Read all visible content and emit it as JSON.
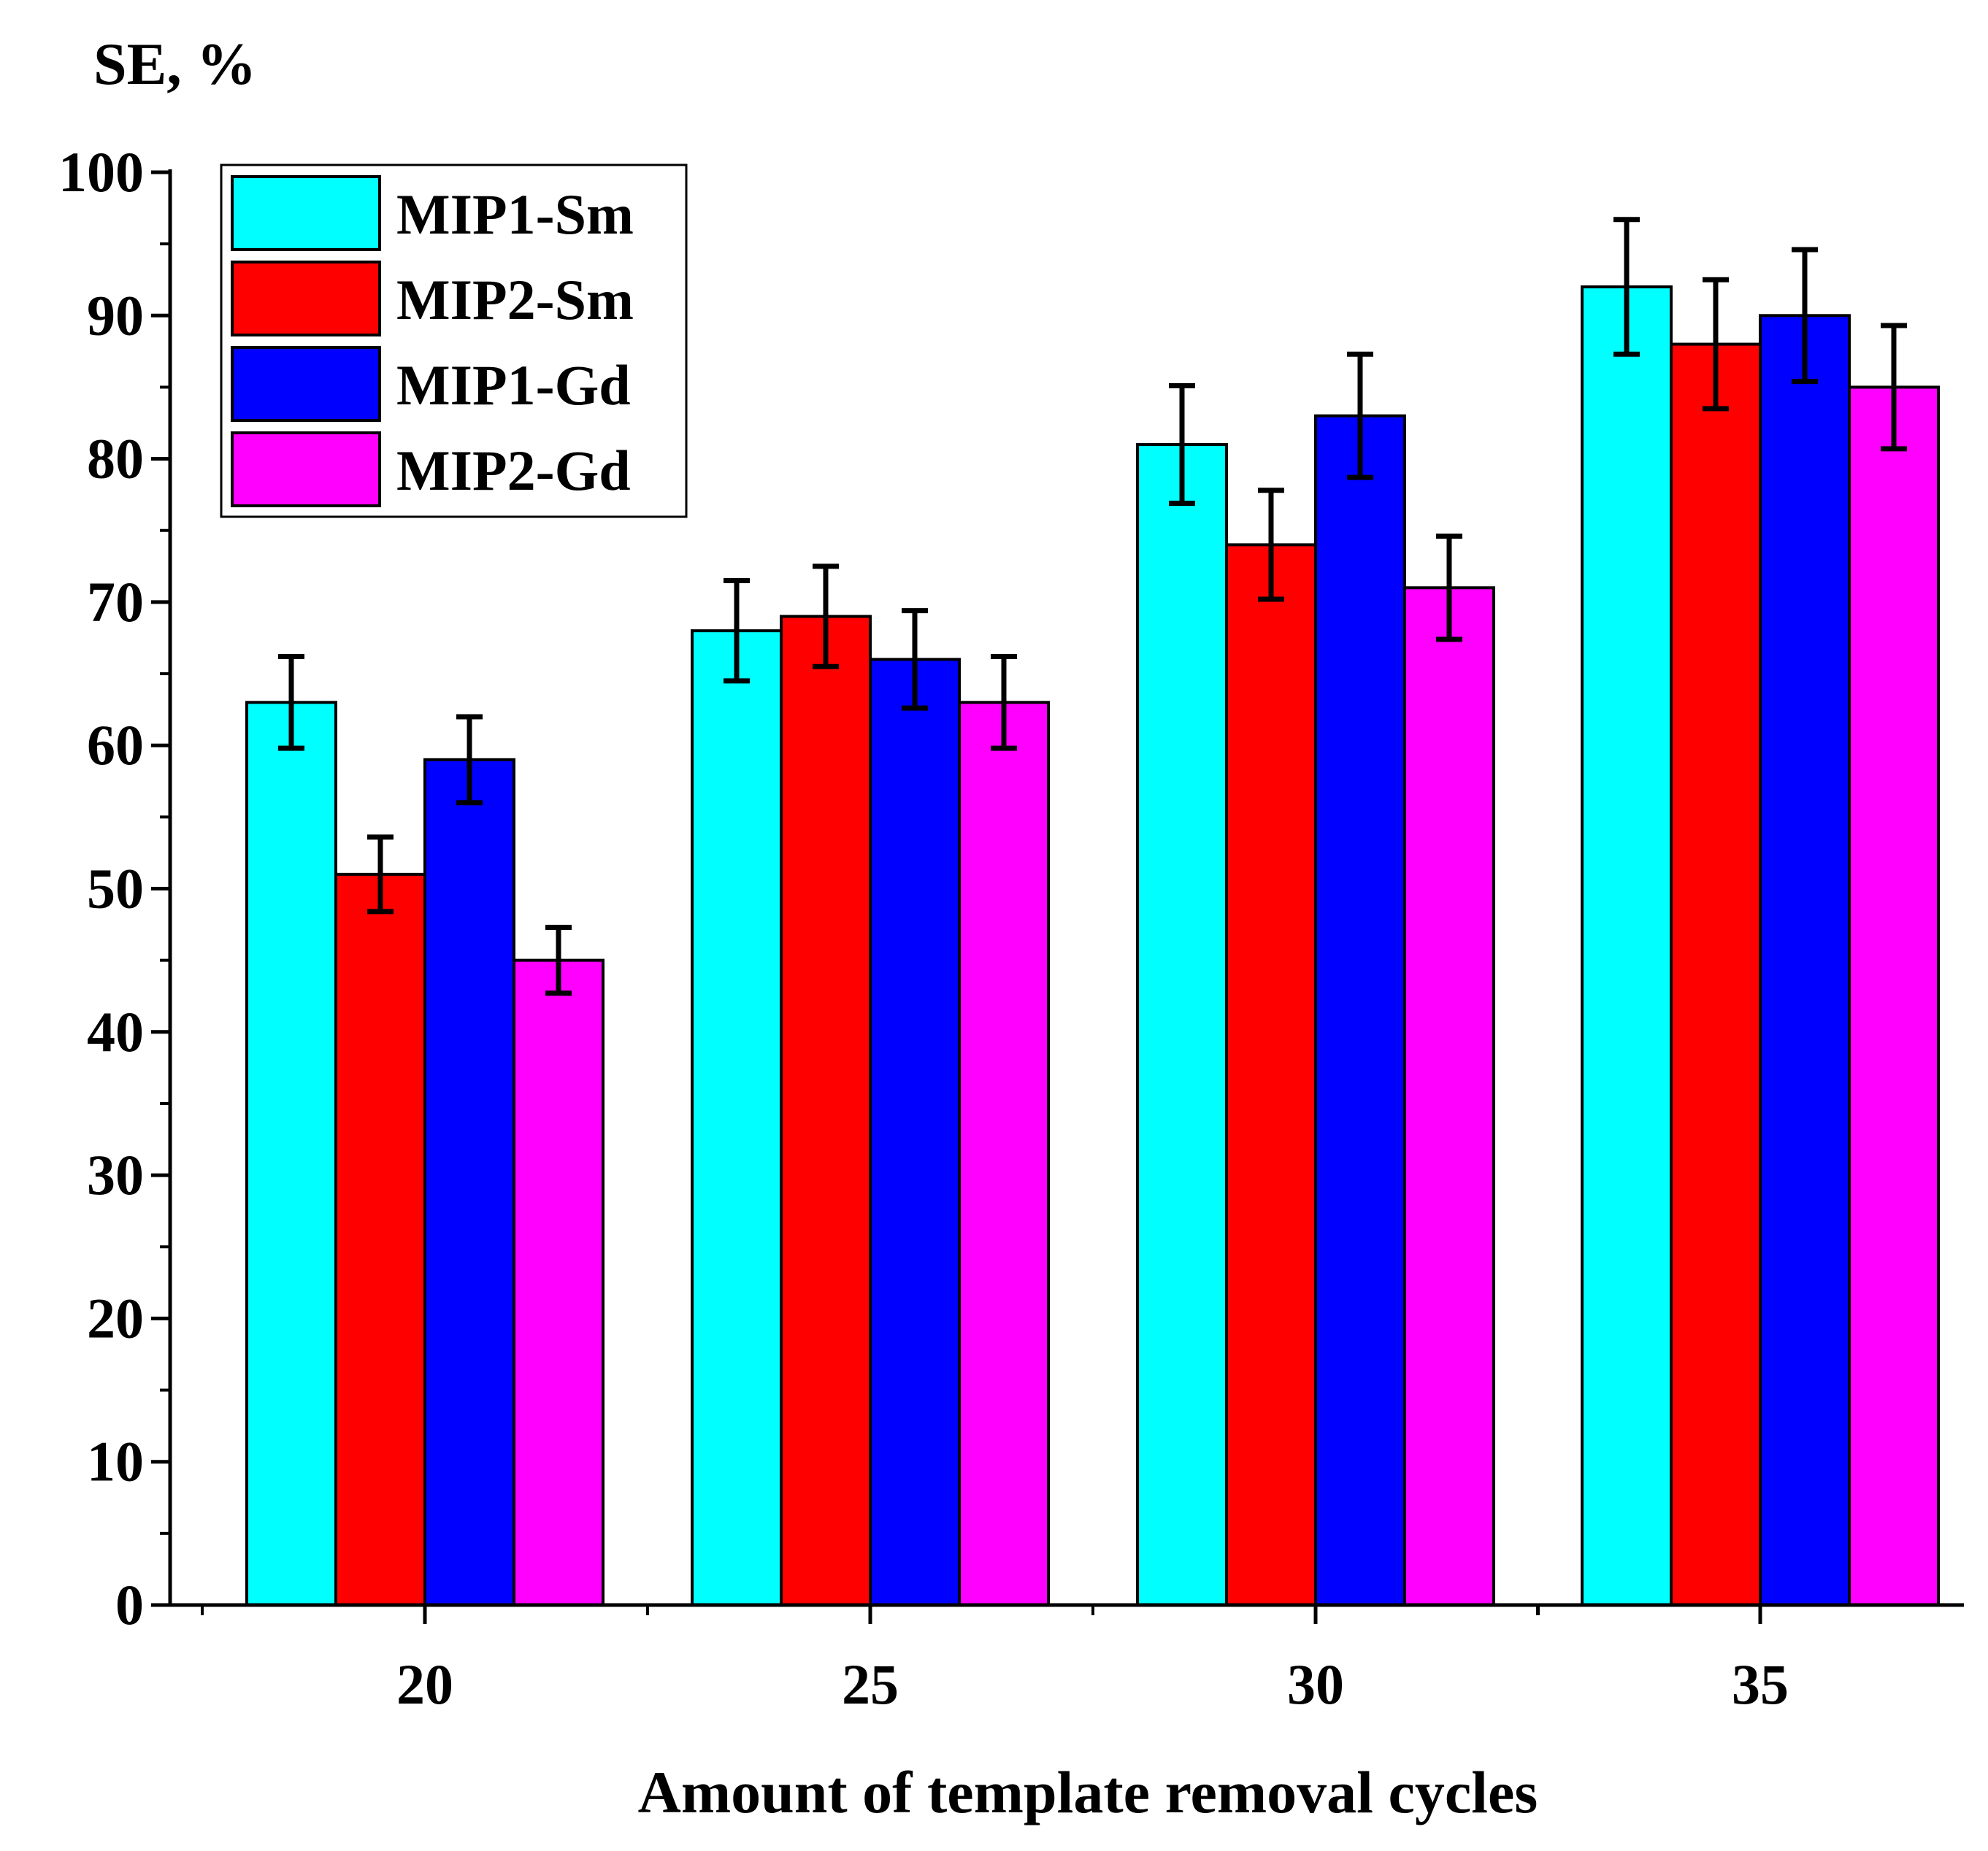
{
  "chart_data": {
    "type": "bar",
    "title": "",
    "xlabel": "Amount of template removal cycles",
    "ylabel": "SE, %",
    "categories": [
      "20",
      "25",
      "30",
      "35"
    ],
    "ylim": [
      0,
      100
    ],
    "yticks": [
      "0",
      "10",
      "20",
      "30",
      "40",
      "50",
      "60",
      "70",
      "80",
      "90",
      "100"
    ],
    "legend_position": "top-left",
    "series": [
      {
        "name": "MIP1-Sm",
        "color": "#00ffff",
        "values": [
          63,
          68,
          81,
          92
        ],
        "errors": [
          3.2,
          3.5,
          4.1,
          4.7
        ]
      },
      {
        "name": "MIP2-Sm",
        "color": "#ff0000",
        "values": [
          51,
          69,
          74,
          88
        ],
        "errors": [
          2.6,
          3.5,
          3.8,
          4.5
        ]
      },
      {
        "name": "MIP1-Gd",
        "color": "#0000ff",
        "values": [
          59,
          66,
          83,
          90
        ],
        "errors": [
          3.0,
          3.4,
          4.3,
          4.6
        ]
      },
      {
        "name": "MIP2-Gd",
        "color": "#ff00ff",
        "values": [
          45,
          63,
          71,
          85
        ],
        "errors": [
          2.3,
          3.2,
          3.6,
          4.3
        ]
      }
    ]
  }
}
